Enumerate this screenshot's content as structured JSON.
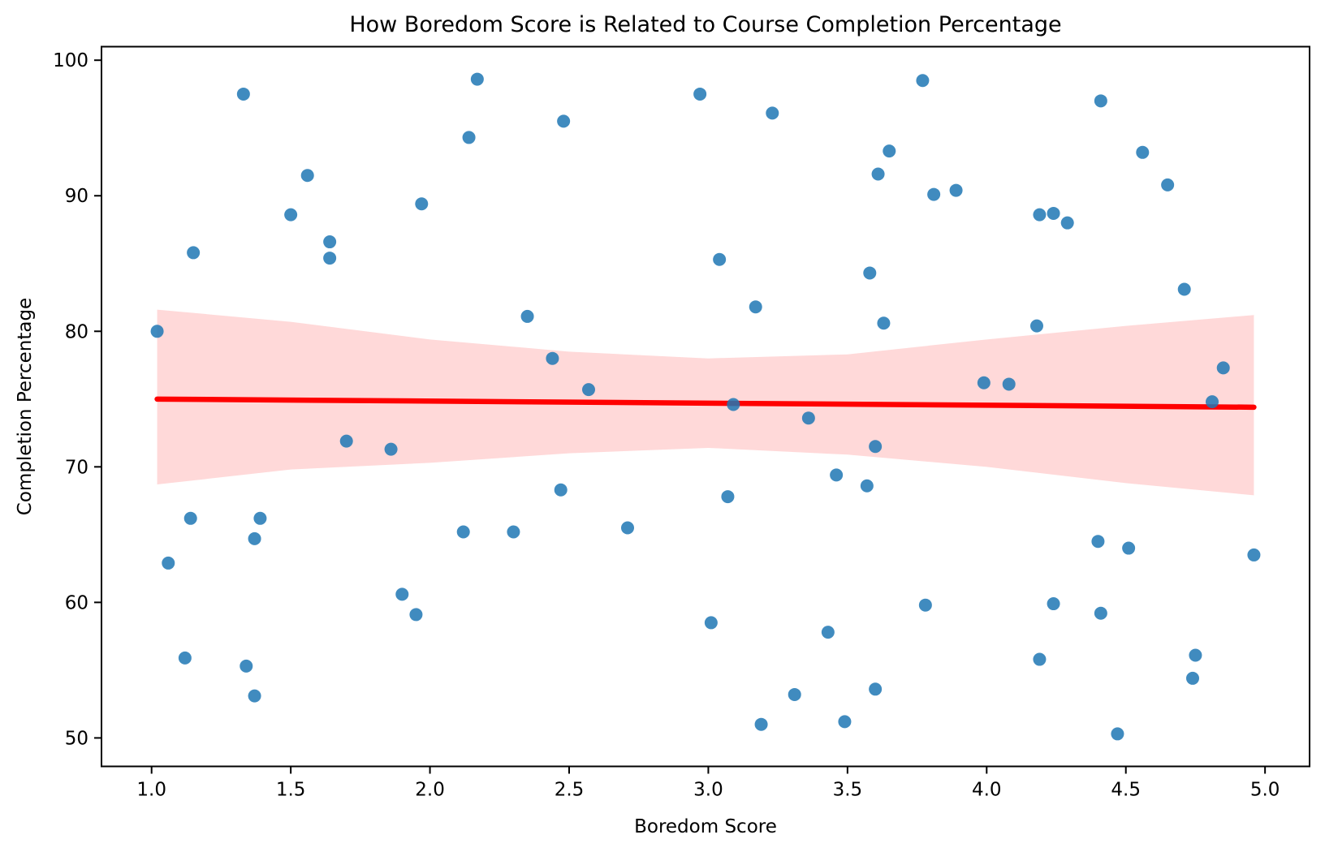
{
  "chart_data": {
    "type": "scatter",
    "title": "How Boredom Score is Related to Course Completion Percentage",
    "xlabel": "Boredom Score",
    "ylabel": "Completion Percentage",
    "xlim": [
      0.82,
      5.16
    ],
    "ylim": [
      47.9,
      101.0
    ],
    "grid": false,
    "legend": "none",
    "x_ticks": [
      1.0,
      1.5,
      2.0,
      2.5,
      3.0,
      3.5,
      4.0,
      4.5,
      5.0
    ],
    "x_tick_labels": [
      "1.0",
      "1.5",
      "2.0",
      "2.5",
      "3.0",
      "3.5",
      "4.0",
      "4.5",
      "5.0"
    ],
    "y_ticks": [
      50,
      60,
      70,
      80,
      90,
      100
    ],
    "y_tick_labels": [
      "50",
      "60",
      "70",
      "80",
      "90",
      "100"
    ],
    "point_color": "#1f77b4",
    "point_opacity": 0.85,
    "point_radius": 8,
    "line_color": "#ff0000",
    "band_color": "#ff0000",
    "band_opacity": 0.15,
    "points": [
      [
        1.02,
        80.0
      ],
      [
        1.06,
        62.9
      ],
      [
        1.12,
        55.9
      ],
      [
        1.15,
        85.8
      ],
      [
        1.14,
        66.2
      ],
      [
        1.33,
        97.5
      ],
      [
        1.34,
        55.3
      ],
      [
        1.37,
        64.7
      ],
      [
        1.39,
        66.2
      ],
      [
        1.37,
        53.1
      ],
      [
        1.5,
        88.6
      ],
      [
        1.56,
        91.5
      ],
      [
        1.64,
        86.6
      ],
      [
        1.64,
        85.4
      ],
      [
        1.7,
        71.9
      ],
      [
        1.86,
        71.3
      ],
      [
        1.9,
        60.6
      ],
      [
        1.95,
        59.1
      ],
      [
        1.97,
        89.4
      ],
      [
        2.12,
        65.2
      ],
      [
        2.14,
        94.3
      ],
      [
        2.17,
        98.6
      ],
      [
        2.3,
        65.2
      ],
      [
        2.35,
        81.1
      ],
      [
        2.44,
        78.0
      ],
      [
        2.47,
        68.3
      ],
      [
        2.48,
        95.5
      ],
      [
        2.57,
        75.7
      ],
      [
        2.71,
        65.5
      ],
      [
        2.97,
        97.5
      ],
      [
        3.01,
        58.5
      ],
      [
        3.04,
        85.3
      ],
      [
        3.09,
        74.6
      ],
      [
        3.07,
        67.8
      ],
      [
        3.17,
        81.8
      ],
      [
        3.19,
        51.0
      ],
      [
        3.23,
        96.1
      ],
      [
        3.31,
        53.2
      ],
      [
        3.36,
        73.6
      ],
      [
        3.43,
        57.8
      ],
      [
        3.46,
        69.4
      ],
      [
        3.49,
        51.2
      ],
      [
        3.57,
        68.6
      ],
      [
        3.58,
        84.3
      ],
      [
        3.6,
        71.5
      ],
      [
        3.61,
        91.6
      ],
      [
        3.6,
        53.6
      ],
      [
        3.65,
        93.3
      ],
      [
        3.63,
        80.6
      ],
      [
        3.77,
        98.5
      ],
      [
        3.78,
        59.8
      ],
      [
        3.81,
        90.1
      ],
      [
        3.89,
        90.4
      ],
      [
        3.99,
        76.2
      ],
      [
        4.08,
        76.1
      ],
      [
        4.18,
        80.4
      ],
      [
        4.19,
        55.8
      ],
      [
        4.19,
        88.6
      ],
      [
        4.24,
        88.7
      ],
      [
        4.24,
        59.9
      ],
      [
        4.29,
        88.0
      ],
      [
        4.4,
        64.5
      ],
      [
        4.41,
        97.0
      ],
      [
        4.41,
        59.2
      ],
      [
        4.47,
        50.3
      ],
      [
        4.51,
        64.0
      ],
      [
        4.56,
        93.2
      ],
      [
        4.65,
        90.8
      ],
      [
        4.71,
        83.1
      ],
      [
        4.74,
        54.4
      ],
      [
        4.75,
        56.1
      ],
      [
        4.85,
        77.3
      ],
      [
        4.81,
        74.8
      ],
      [
        4.96,
        63.5
      ]
    ],
    "regression_line": {
      "x": [
        1.02,
        4.96
      ],
      "y": [
        75.0,
        74.4
      ]
    },
    "confidence_band": {
      "x": [
        1.02,
        1.5,
        2.0,
        2.5,
        3.0,
        3.5,
        4.0,
        4.5,
        4.96
      ],
      "top": [
        81.6,
        80.7,
        79.4,
        78.5,
        78.0,
        78.3,
        79.4,
        80.4,
        81.2
      ],
      "bottom": [
        68.7,
        69.8,
        70.3,
        71.0,
        71.4,
        70.9,
        70.0,
        68.8,
        67.9
      ]
    }
  }
}
